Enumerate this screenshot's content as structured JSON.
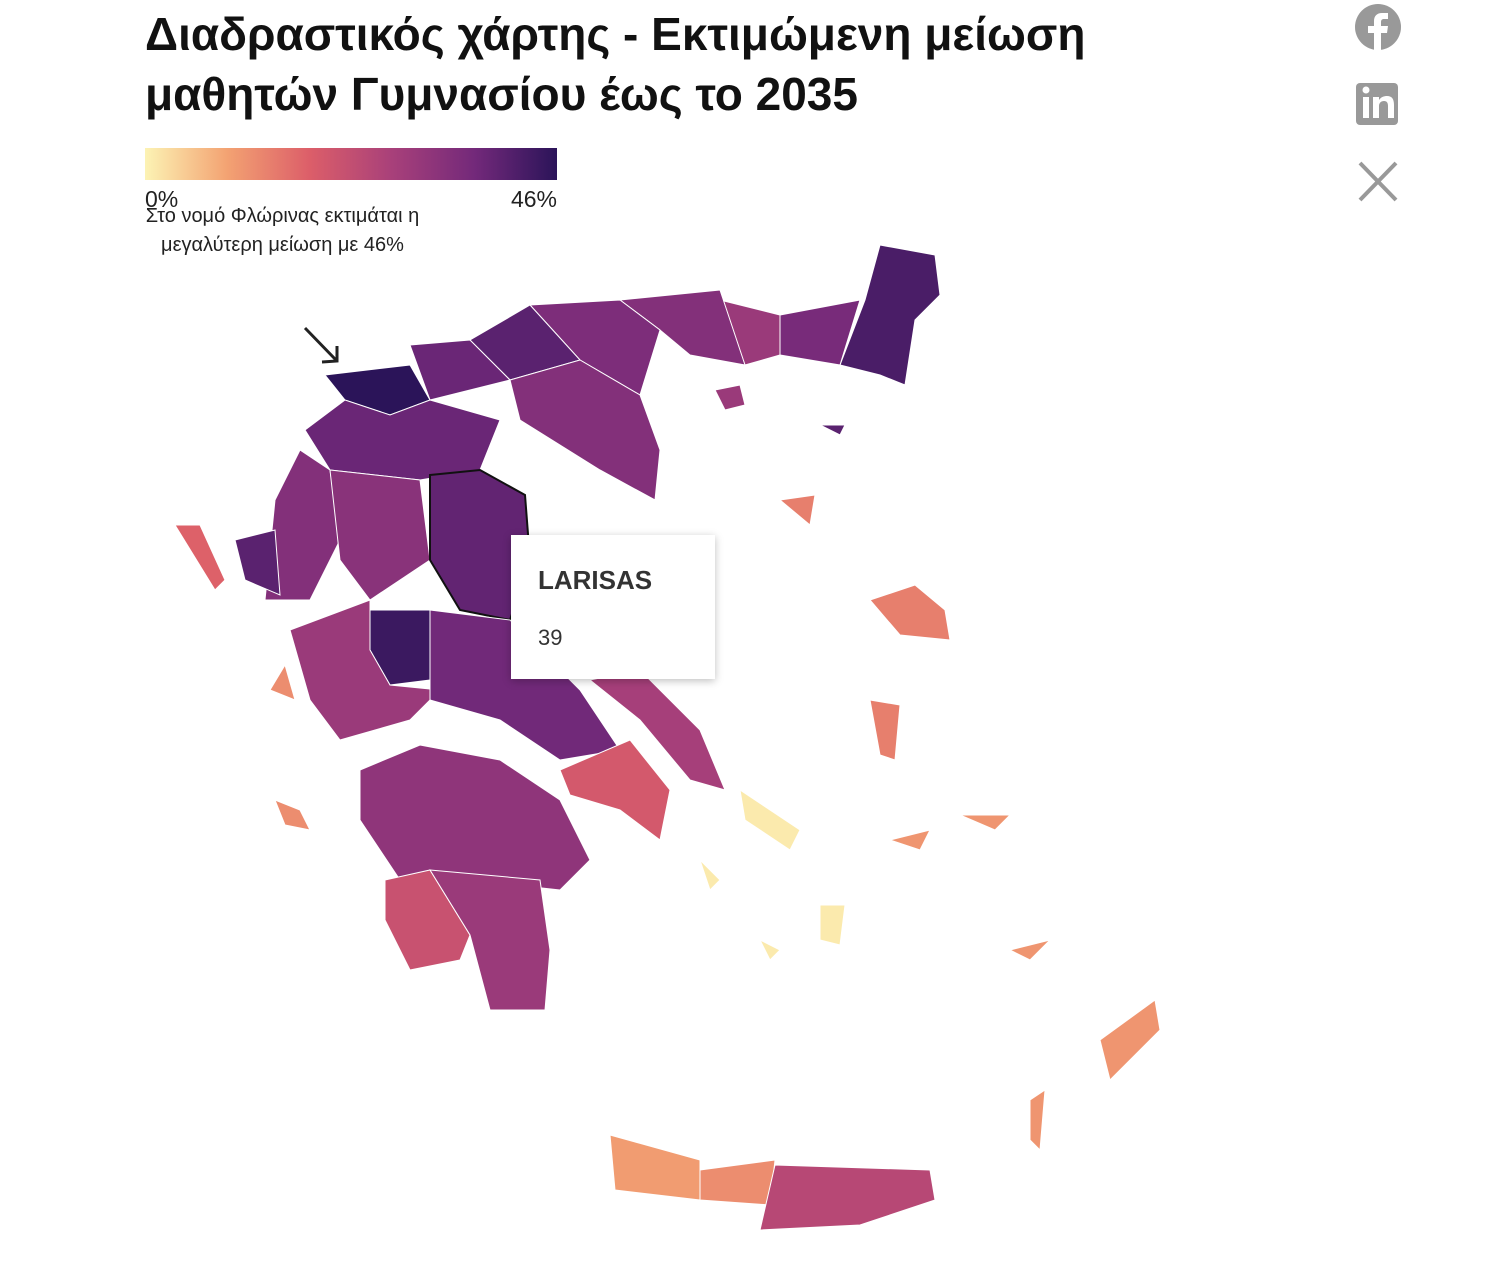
{
  "header": {
    "title": "Διαδραστικός χάρτης - Εκτιμώμενη μείωση μαθητών Γυμνασίου έως το 2035"
  },
  "legend": {
    "colorscale": [
      "#fcf3b4",
      "#f3a272",
      "#dc5e69",
      "#a8407a",
      "#73297a",
      "#2b1459"
    ],
    "range": [
      0,
      46
    ],
    "ticks": [
      {
        "value": 0,
        "label": "0%"
      },
      {
        "value": 46,
        "label": "46%"
      }
    ]
  },
  "annotation": "Στο νομό Φλώρινας εκτιμάται η μεγαλύτερη μείωση με 46%",
  "map": {
    "region_values": [
      42,
      36,
      30,
      34,
      35,
      40,
      38,
      46,
      34,
      38,
      34,
      40,
      33,
      39,
      44,
      30,
      37,
      28,
      20,
      32,
      22,
      30,
      18,
      12,
      10,
      12,
      25,
      14,
      14,
      14,
      1,
      11,
      30,
      40
    ]
  },
  "tooltip": {
    "title": "LARISAS",
    "value": 39
  }
}
